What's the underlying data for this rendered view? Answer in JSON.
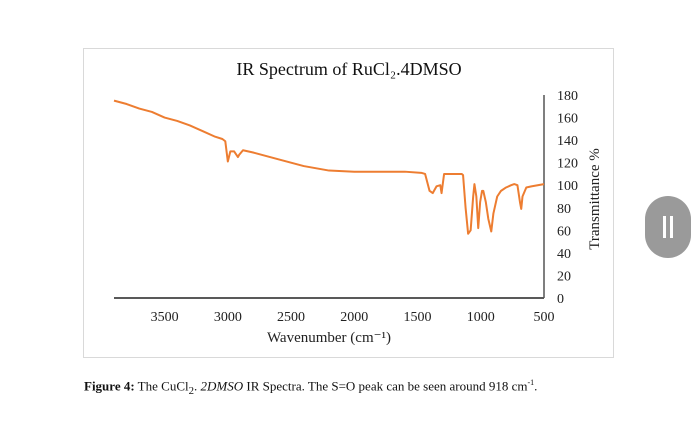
{
  "chart_data": {
    "type": "line",
    "title": "IR Spectrum of RuCl₂.4DMSO",
    "xlabel": "Wavenumber (cm⁻¹)",
    "ylabel": "Transmittance %",
    "xlim": [
      3900,
      500
    ],
    "ylim": [
      0,
      180
    ],
    "x_reversed": true,
    "y_axis_position": "right",
    "xticks": [
      3500,
      3000,
      2500,
      2000,
      1500,
      1000,
      500
    ],
    "yticks": [
      0,
      20,
      40,
      60,
      80,
      100,
      120,
      140,
      160,
      180
    ],
    "grid": false,
    "color": "#ed7d31",
    "series": [
      {
        "x": [
          3900,
          3800,
          3700,
          3600,
          3500,
          3400,
          3300,
          3200,
          3100,
          3043,
          3020,
          3000,
          2980,
          2950,
          2920,
          2910,
          2880,
          2800,
          2600,
          2400,
          2200,
          2000,
          1800,
          1600,
          1470,
          1440,
          1405,
          1380,
          1350,
          1320,
          1310,
          1290,
          1200,
          1150,
          1140,
          1120,
          1100,
          1080,
          1060,
          1050,
          1035,
          1020,
          1005,
          990,
          980,
          960,
          940,
          917,
          900,
          870,
          840,
          800,
          760,
          735,
          710,
          690,
          680,
          670,
          640,
          600,
          550,
          500
        ],
        "y": [
          175,
          172,
          168,
          165,
          160,
          157,
          153,
          148,
          143,
          141,
          139,
          121,
          130,
          130,
          125,
          127,
          131,
          129,
          123,
          117,
          113,
          112,
          112,
          112,
          111,
          110,
          95,
          93,
          99,
          100,
          93,
          110,
          110,
          110,
          109,
          80,
          57,
          60,
          90,
          101,
          90,
          62,
          85,
          95,
          95,
          85,
          70,
          59,
          75,
          90,
          95,
          98,
          100,
          101,
          100,
          85,
          79,
          90,
          98,
          99,
          100,
          101
        ]
      }
    ]
  },
  "caption": {
    "bold": "Figure 4:",
    "text_a": " The CuCl",
    "sub": "2",
    "text_b": ". ",
    "italic": "2DMSO",
    "text_c": " IR Spectra. The S=O peak can be seen around 918 cm",
    "sup": "-1",
    "text_d": "."
  }
}
